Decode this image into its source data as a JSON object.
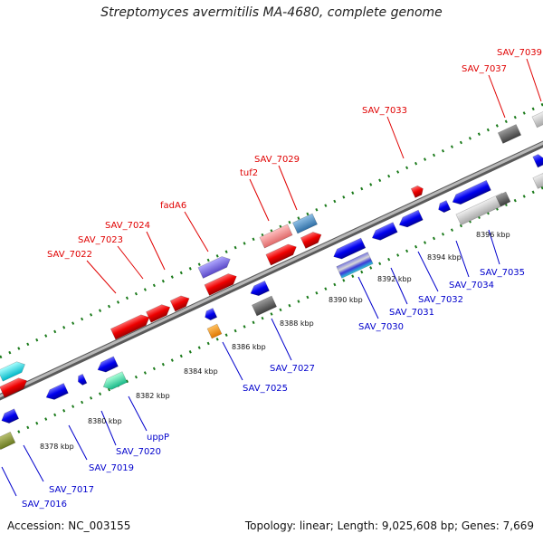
{
  "title": "Streptomyces avermitilis MA-4680, complete genome",
  "footer": {
    "accession": "Accession: NC_003155",
    "summary": "Topology: linear; Length: 9,025,608 bp; Genes: 7,669"
  },
  "colors": {
    "forward_label": "#e00000",
    "reverse_label": "#0000cc",
    "axis": "#7f7f7f",
    "tick": "#1a7a1a"
  },
  "scale_labels": [
    "8378 kbp",
    "8380 kbp",
    "8382 kbp",
    "8384 kbp",
    "8386 kbp",
    "8388 kbp",
    "8390 kbp",
    "8392 kbp",
    "8394 kbp",
    "8396 kbp"
  ],
  "forward_genes": [
    "SAV_7022",
    "SAV_7023",
    "SAV_7024",
    "fadA6",
    "tuf2",
    "SAV_7029",
    "SAV_7033",
    "SAV_7037",
    "SAV_7039"
  ],
  "reverse_genes": [
    "SAV_7016",
    "SAV_7017",
    "SAV_7019",
    "SAV_7020",
    "uppP",
    "SAV_7025",
    "SAV_7027",
    "SAV_7030",
    "SAV_7031",
    "SAV_7032",
    "SAV_7034",
    "SAV_7035"
  ]
}
